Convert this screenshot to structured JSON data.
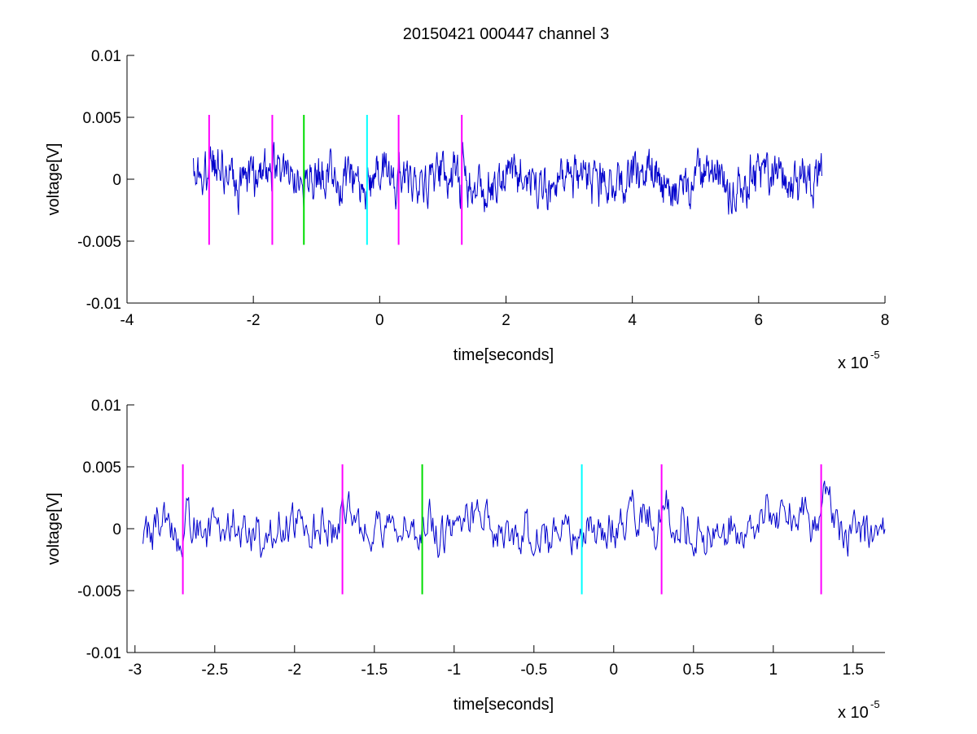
{
  "chart_data": [
    {
      "type": "line",
      "title": "20150421 000447 channel 3",
      "xlabel": "time[seconds]",
      "ylabel": "voltage[V]",
      "x_multiplier_label": "x 10",
      "x_multiplier_exp": "-5",
      "xlim": [
        -4,
        8
      ],
      "ylim": [
        -0.01,
        0.01
      ],
      "xticks": [
        -4,
        -2,
        0,
        2,
        4,
        6,
        8
      ],
      "xtick_labels": [
        "-4",
        "-2",
        "0",
        "2",
        "4",
        "6",
        "8"
      ],
      "yticks": [
        -0.01,
        -0.005,
        0,
        0.005,
        0.01
      ],
      "ytick_labels": [
        "-0.01",
        "-0.005",
        "0",
        "0.005",
        "0.01"
      ],
      "grid": false,
      "signal": {
        "color": "#0000cc",
        "x_range": [
          -2.95,
          7.0
        ],
        "approx_amplitude": 0.0012,
        "approx_min": -0.005,
        "approx_max": 0.003
      },
      "markers": [
        {
          "x": -2.7,
          "color": "#ff00ff",
          "ymin": -0.0053,
          "ymax": 0.0052
        },
        {
          "x": -1.7,
          "color": "#ff00ff",
          "ymin": -0.0053,
          "ymax": 0.0052
        },
        {
          "x": -1.2,
          "color": "#00dd00",
          "ymin": -0.0053,
          "ymax": 0.0052
        },
        {
          "x": -0.2,
          "color": "#00ffff",
          "ymin": -0.0053,
          "ymax": 0.0052
        },
        {
          "x": 0.3,
          "color": "#ff00ff",
          "ymin": -0.0053,
          "ymax": 0.0052
        },
        {
          "x": 1.3,
          "color": "#ff00ff",
          "ymin": -0.0053,
          "ymax": 0.0052
        }
      ]
    },
    {
      "type": "line",
      "title": "",
      "xlabel": "time[seconds]",
      "ylabel": "voltage[V]",
      "x_multiplier_label": "x 10",
      "x_multiplier_exp": "-5",
      "xlim": [
        -3.05,
        1.7
      ],
      "ylim": [
        -0.01,
        0.01
      ],
      "xticks": [
        -3,
        -2.5,
        -2,
        -1.5,
        -1,
        -0.5,
        0,
        0.5,
        1,
        1.5
      ],
      "xtick_labels": [
        "-3",
        "-2.5",
        "-2",
        "-1.5",
        "-1",
        "-0.5",
        "0",
        "0.5",
        "1",
        "1.5"
      ],
      "yticks": [
        -0.01,
        -0.005,
        0,
        0.005,
        0.01
      ],
      "ytick_labels": [
        "-0.01",
        "-0.005",
        "0",
        "0.005",
        "0.01"
      ],
      "grid": false,
      "signal": {
        "color": "#0000cc",
        "x_range": [
          -2.95,
          1.7
        ],
        "approx_amplitude": 0.0012,
        "approx_min": -0.005,
        "approx_max": 0.004
      },
      "markers": [
        {
          "x": -2.7,
          "color": "#ff00ff",
          "ymin": -0.0053,
          "ymax": 0.0052
        },
        {
          "x": -1.7,
          "color": "#ff00ff",
          "ymin": -0.0053,
          "ymax": 0.0052
        },
        {
          "x": -1.2,
          "color": "#00dd00",
          "ymin": -0.0053,
          "ymax": 0.0052
        },
        {
          "x": -0.2,
          "color": "#00ffff",
          "ymin": -0.0053,
          "ymax": 0.0052
        },
        {
          "x": 0.3,
          "color": "#ff00ff",
          "ymin": -0.0053,
          "ymax": 0.0052
        },
        {
          "x": 1.3,
          "color": "#ff00ff",
          "ymin": -0.0053,
          "ymax": 0.0052
        }
      ]
    }
  ]
}
